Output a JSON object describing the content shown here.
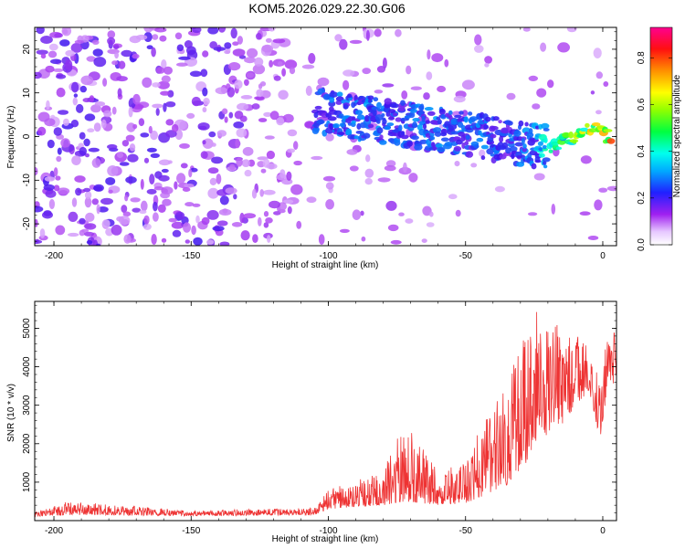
{
  "title": "KOM5.2026.029.22.30.G06",
  "chart_data": [
    {
      "type": "heatmap",
      "title": "KOM5.2026.029.22.30.G06",
      "xlabel": "Height of straight line (km)",
      "ylabel": "Frequency (Hz)",
      "xlim": [
        -207,
        5
      ],
      "ylim": [
        -25,
        25
      ],
      "xticks": [
        "-200",
        "-150",
        "-100",
        "-50",
        "0"
      ],
      "xtick_values": [
        -200,
        -150,
        -100,
        -50,
        0
      ],
      "yticks": [
        "20",
        "10",
        "0",
        "-10",
        "-20"
      ],
      "ytick_values": [
        20,
        10,
        0,
        -10,
        -20
      ],
      "colorbar": {
        "label": "Normalized spectral amplitude",
        "range": [
          0,
          0.93
        ],
        "ticks": [
          "0.0",
          "0.2",
          "0.4",
          "0.6",
          "0.8"
        ],
        "tick_values": [
          0,
          0.2,
          0.4,
          0.6,
          0.8
        ]
      },
      "ridge": [
        {
          "x": -105,
          "y": 6,
          "amp": 0.25
        },
        {
          "x": -95,
          "y": 5,
          "amp": 0.28
        },
        {
          "x": -85,
          "y": 4,
          "amp": 0.3
        },
        {
          "x": -75,
          "y": 3,
          "amp": 0.25
        },
        {
          "x": -65,
          "y": 2,
          "amp": 0.3
        },
        {
          "x": -55,
          "y": 1,
          "amp": 0.27
        },
        {
          "x": -45,
          "y": 0,
          "amp": 0.28
        },
        {
          "x": -35,
          "y": -1,
          "amp": 0.25
        },
        {
          "x": -25,
          "y": -2,
          "amp": 0.3
        },
        {
          "x": -18,
          "y": -2,
          "amp": 0.45
        },
        {
          "x": -10,
          "y": 0,
          "amp": 0.6
        },
        {
          "x": -3,
          "y": 2,
          "amp": 0.7
        },
        {
          "x": 3,
          "y": -0.5,
          "amp": 0.8
        }
      ]
    },
    {
      "type": "line",
      "xlabel": "Height of straight line (km)",
      "ylabel": "SNR (10 * v/v)",
      "xlim": [
        -207,
        5
      ],
      "ylim": [
        0,
        5700
      ],
      "xticks": [
        "-200",
        "-150",
        "-100",
        "-50",
        "0"
      ],
      "xtick_values": [
        -200,
        -150,
        -100,
        -50,
        0
      ],
      "yticks": [
        "5000",
        "4000",
        "3000",
        "2000",
        "1000"
      ],
      "ytick_values": [
        5000,
        4000,
        3000,
        2000,
        1000
      ],
      "line_color": "#ee3333",
      "envelope": [
        {
          "x": -207,
          "base": 100,
          "spread": 120
        },
        {
          "x": -195,
          "base": 150,
          "spread": 350
        },
        {
          "x": -150,
          "base": 120,
          "spread": 150
        },
        {
          "x": -105,
          "base": 150,
          "spread": 180
        },
        {
          "x": -100,
          "base": 300,
          "spread": 500
        },
        {
          "x": -80,
          "base": 400,
          "spread": 900
        },
        {
          "x": -72,
          "base": 500,
          "spread": 2100
        },
        {
          "x": -60,
          "base": 400,
          "spread": 900
        },
        {
          "x": -50,
          "base": 450,
          "spread": 1100
        },
        {
          "x": -45,
          "base": 600,
          "spread": 1800
        },
        {
          "x": -35,
          "base": 900,
          "spread": 2600
        },
        {
          "x": -28,
          "base": 1500,
          "spread": 3600
        },
        {
          "x": -25,
          "base": 2000,
          "spread": 3700
        },
        {
          "x": -15,
          "base": 2500,
          "spread": 2500
        },
        {
          "x": -5,
          "base": 3400,
          "spread": 1300
        },
        {
          "x": -1,
          "base": 2100,
          "spread": 1500
        },
        {
          "x": 2,
          "base": 3600,
          "spread": 1400
        },
        {
          "x": 5,
          "base": 3500,
          "spread": 2000
        }
      ]
    }
  ]
}
